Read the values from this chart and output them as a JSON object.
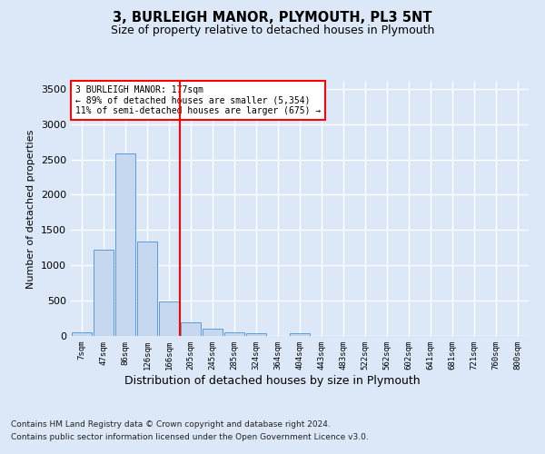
{
  "title": "3, BURLEIGH MANOR, PLYMOUTH, PL3 5NT",
  "subtitle": "Size of property relative to detached houses in Plymouth",
  "xlabel": "Distribution of detached houses by size in Plymouth",
  "ylabel": "Number of detached properties",
  "bar_labels": [
    "7sqm",
    "47sqm",
    "86sqm",
    "126sqm",
    "166sqm",
    "205sqm",
    "245sqm",
    "285sqm",
    "324sqm",
    "364sqm",
    "404sqm",
    "443sqm",
    "483sqm",
    "522sqm",
    "562sqm",
    "602sqm",
    "641sqm",
    "681sqm",
    "721sqm",
    "760sqm",
    "800sqm"
  ],
  "bar_values": [
    55,
    1220,
    2580,
    1340,
    490,
    195,
    100,
    50,
    40,
    0,
    35,
    0,
    0,
    0,
    0,
    0,
    0,
    0,
    0,
    0,
    0
  ],
  "bar_color": "#c5d8f0",
  "bar_edge_color": "#5b9bd5",
  "red_line_x": 4.5,
  "annotation_line1": "3 BURLEIGH MANOR: 177sqm",
  "annotation_line2": "← 89% of detached houses are smaller (5,354)",
  "annotation_line3": "11% of semi-detached houses are larger (675) →",
  "ylim": [
    0,
    3600
  ],
  "yticks": [
    0,
    500,
    1000,
    1500,
    2000,
    2500,
    3000,
    3500
  ],
  "background_color": "#dce8f7",
  "plot_bg_color": "#dce8f7",
  "grid_color": "#ffffff",
  "footer_line1": "Contains HM Land Registry data © Crown copyright and database right 2024.",
  "footer_line2": "Contains public sector information licensed under the Open Government Licence v3.0."
}
